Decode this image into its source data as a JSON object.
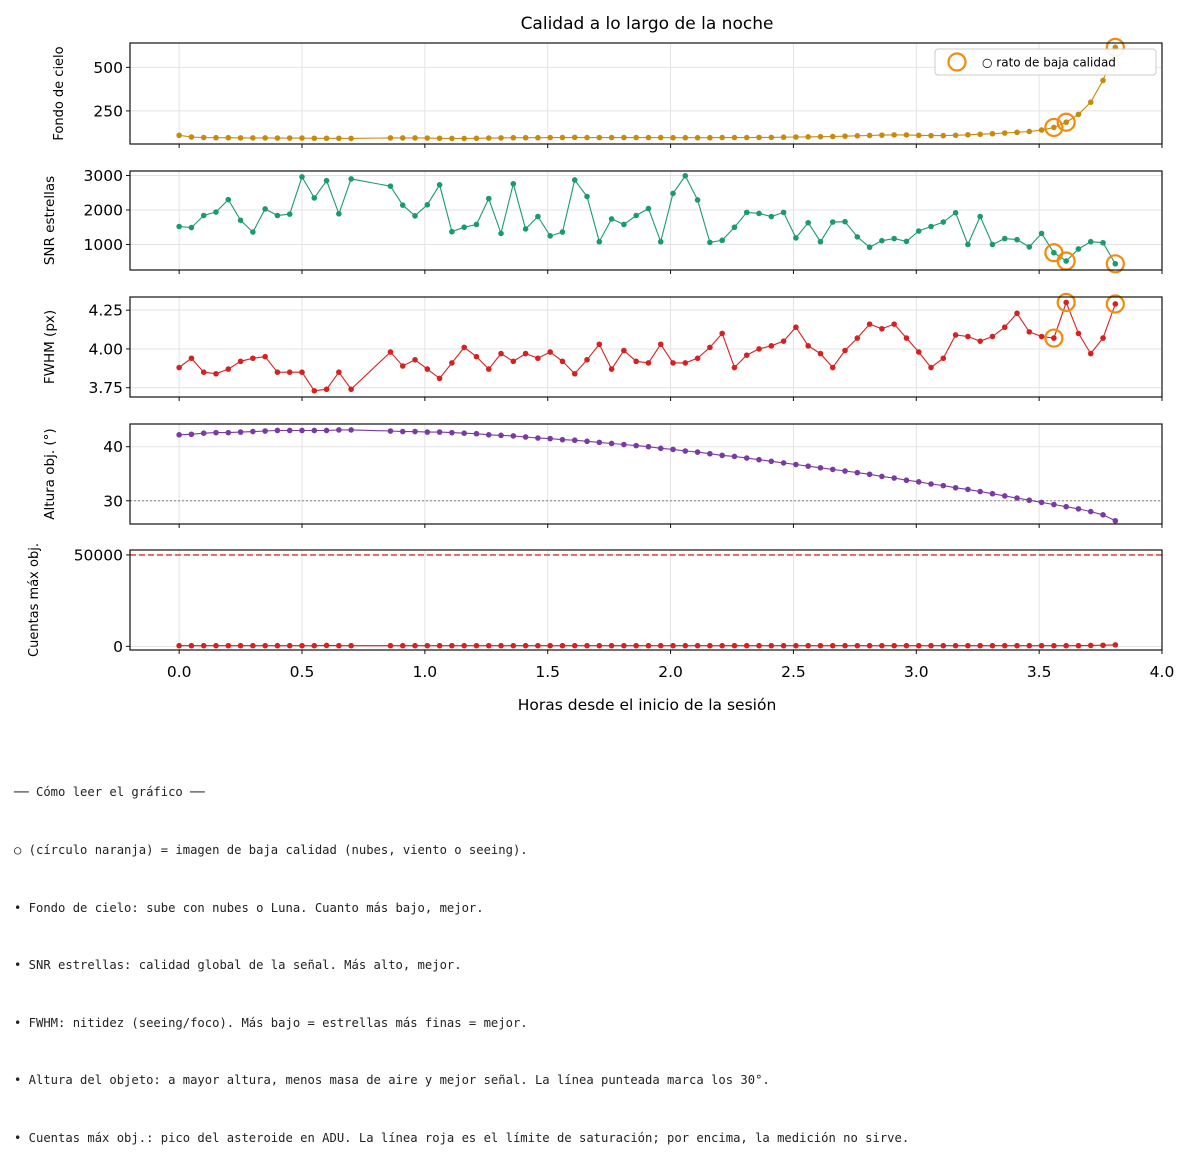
{
  "chart_data": {
    "type": "line",
    "title": "Calidad a lo largo de la noche",
    "xlabel": "Horas desde el inicio de la sesión",
    "xlim": [
      -0.2,
      4.0
    ],
    "xticks": [
      0.0,
      0.5,
      1.0,
      1.5,
      2.0,
      2.5,
      3.0,
      3.5,
      4.0
    ],
    "xticklabels": [
      "0.0",
      "0.5",
      "1.0",
      "1.5",
      "2.0",
      "2.5",
      "3.0",
      "3.5",
      "4.0"
    ],
    "grid": true,
    "legend": {
      "placement": "top-right",
      "panel": 0,
      "label": "○ rato de baja calidad",
      "marker": "orange open circle"
    },
    "x": [
      0.0,
      0.05,
      0.1,
      0.15,
      0.2,
      0.25,
      0.3,
      0.35,
      0.4,
      0.45,
      0.5,
      0.55,
      0.6,
      0.65,
      0.7,
      0.86,
      0.91,
      0.96,
      1.01,
      1.06,
      1.11,
      1.16,
      1.21,
      1.26,
      1.31,
      1.36,
      1.41,
      1.46,
      1.51,
      1.56,
      1.61,
      1.66,
      1.71,
      1.76,
      1.81,
      1.86,
      1.91,
      1.96,
      2.01,
      2.06,
      2.11,
      2.16,
      2.21,
      2.26,
      2.31,
      2.36,
      2.41,
      2.46,
      2.51,
      2.56,
      2.61,
      2.66,
      2.71,
      2.76,
      2.81,
      2.86,
      2.91,
      2.96,
      3.01,
      3.06,
      3.11,
      3.16,
      3.21,
      3.26,
      3.31,
      3.36,
      3.41,
      3.46,
      3.51,
      3.56,
      3.61,
      3.66,
      3.71,
      3.76,
      3.81
    ],
    "bad_x": [
      3.56,
      3.61,
      3.81
    ],
    "panels": [
      {
        "ylabel": "Fondo de cielo",
        "ylim": [
          60,
          640
        ],
        "yticks": [
          250,
          500
        ],
        "yticklabels": [
          "250",
          "500"
        ],
        "color": "#c98a0b",
        "values": [
          110,
          100,
          97,
          96,
          96,
          95,
          95,
          95,
          94,
          94,
          94,
          93,
          93,
          93,
          92,
          95,
          95,
          95,
          94,
          93,
          92,
          92,
          93,
          94,
          95,
          96,
          96,
          96,
          97,
          97,
          98,
          97,
          97,
          97,
          97,
          97,
          97,
          97,
          96,
          96,
          96,
          96,
          97,
          97,
          97,
          98,
          98,
          99,
          100,
          101,
          102,
          103,
          105,
          107,
          109,
          111,
          112,
          112,
          110,
          108,
          108,
          110,
          113,
          116,
          119,
          123,
          127,
          132,
          140,
          155,
          185,
          230,
          300,
          425,
          615
        ],
        "bad_values": [
          155,
          185,
          615
        ]
      },
      {
        "ylabel": "SNR estrellas",
        "ylim": [
          260,
          3130
        ],
        "yticks": [
          1000,
          2000,
          3000
        ],
        "yticklabels": [
          "1000",
          "2000",
          "3000"
        ],
        "color": "#1b9a6e",
        "values": [
          1520,
          1490,
          1840,
          1940,
          2300,
          1700,
          1360,
          2030,
          1840,
          1880,
          2960,
          2350,
          2850,
          1890,
          2900,
          2690,
          2140,
          1830,
          2150,
          2730,
          1370,
          1500,
          1580,
          2330,
          1320,
          2760,
          1450,
          1810,
          1250,
          1360,
          2870,
          2390,
          1080,
          1740,
          1580,
          1840,
          2040,
          1080,
          2480,
          2990,
          2290,
          1060,
          1120,
          1500,
          1930,
          1900,
          1810,
          1930,
          1190,
          1630,
          1080,
          1650,
          1660,
          1220,
          920,
          1110,
          1170,
          1090,
          1390,
          1520,
          1650,
          1920,
          1000,
          1810,
          1000,
          1170,
          1140,
          930,
          1320,
          760,
          520,
          870,
          1080,
          1050,
          440
        ],
        "bad_values": [
          760,
          520,
          440
        ]
      },
      {
        "ylabel": "FWHM (px)",
        "ylim": [
          3.69,
          4.335
        ],
        "yticks": [
          3.75,
          4.0,
          4.25
        ],
        "yticklabels": [
          "3.75",
          "4.00",
          "4.25"
        ],
        "color": "#d42222",
        "values": [
          3.88,
          3.94,
          3.85,
          3.84,
          3.87,
          3.92,
          3.94,
          3.95,
          3.85,
          3.85,
          3.85,
          3.73,
          3.74,
          3.85,
          3.74,
          3.98,
          3.89,
          3.93,
          3.87,
          3.81,
          3.91,
          4.01,
          3.95,
          3.87,
          3.97,
          3.92,
          3.97,
          3.94,
          3.98,
          3.92,
          3.84,
          3.93,
          4.03,
          3.87,
          3.99,
          3.92,
          3.91,
          4.03,
          3.91,
          3.91,
          3.94,
          4.01,
          4.1,
          3.88,
          3.96,
          4.0,
          4.02,
          4.05,
          4.14,
          4.02,
          3.97,
          3.88,
          3.99,
          4.07,
          4.16,
          4.13,
          4.16,
          4.07,
          3.98,
          3.88,
          3.94,
          4.09,
          4.08,
          4.05,
          4.08,
          4.14,
          4.23,
          4.11,
          4.08,
          4.07,
          4.3,
          4.1,
          3.97,
          4.07,
          4.29
        ],
        "bad_values": [
          4.07,
          4.3,
          4.29
        ]
      },
      {
        "ylabel": "Altura obj. (°)",
        "ylim": [
          25.7,
          44.2
        ],
        "yticks": [
          30,
          40
        ],
        "yticklabels": [
          "30",
          "40"
        ],
        "hline": {
          "y": 30,
          "style": "dotted",
          "color": "#999999"
        },
        "color": "#7a3aa3",
        "values": [
          42.2,
          42.3,
          42.5,
          42.6,
          42.6,
          42.7,
          42.8,
          42.9,
          43.0,
          43.0,
          43.0,
          43.0,
          43.0,
          43.1,
          43.1,
          42.9,
          42.8,
          42.8,
          42.7,
          42.7,
          42.6,
          42.5,
          42.4,
          42.2,
          42.1,
          42.0,
          41.8,
          41.6,
          41.5,
          41.3,
          41.2,
          41.0,
          40.8,
          40.6,
          40.4,
          40.2,
          40.0,
          39.7,
          39.5,
          39.2,
          39.0,
          38.7,
          38.4,
          38.2,
          37.9,
          37.6,
          37.3,
          37.0,
          36.7,
          36.4,
          36.1,
          35.8,
          35.5,
          35.2,
          34.9,
          34.5,
          34.2,
          33.8,
          33.5,
          33.1,
          32.8,
          32.4,
          32.1,
          31.7,
          31.3,
          30.9,
          30.5,
          30.1,
          29.7,
          29.3,
          28.9,
          28.5,
          28.0,
          27.4,
          26.3
        ],
        "bad_values": []
      },
      {
        "ylabel": "Cuentas máx obj.",
        "ylim": [
          -2000,
          52700
        ],
        "yticks": [
          0,
          50000
        ],
        "yticklabels": [
          "0",
          "50000"
        ],
        "hline": {
          "y": 50000,
          "style": "dashed",
          "color": "#d9534f"
        },
        "color": "#d42222",
        "values": [
          350,
          350,
          350,
          350,
          350,
          350,
          350,
          350,
          350,
          350,
          350,
          350,
          500,
          350,
          350,
          350,
          350,
          350,
          350,
          350,
          350,
          350,
          350,
          350,
          350,
          350,
          350,
          350,
          350,
          350,
          350,
          350,
          350,
          350,
          350,
          350,
          350,
          350,
          350,
          350,
          350,
          350,
          350,
          350,
          350,
          350,
          350,
          350,
          350,
          350,
          350,
          350,
          350,
          350,
          350,
          350,
          350,
          350,
          350,
          350,
          350,
          350,
          350,
          350,
          350,
          350,
          350,
          350,
          350,
          350,
          350,
          350,
          500,
          600,
          800
        ],
        "bad_values": []
      }
    ]
  },
  "notes": {
    "header": "── Cómo leer el gráfico ──",
    "lines": [
      "○ (círculo naranja) = imagen de baja calidad (nubes, viento o seeing).",
      "• Fondo de cielo: sube con nubes o Luna. Cuanto más bajo, mejor.",
      "• SNR estrellas: calidad global de la señal. Más alto, mejor.",
      "• FWHM: nitidez (seeing/foco). Más bajo = estrellas más finas = mejor.",
      "• Altura del objeto: a mayor altura, menos masa de aire y mejor señal. La línea punteada marca los 30°.",
      "• Cuentas máx obj.: pico del asteroide en ADU. La línea roja es el límite de saturación; por encima, la medición no sirve."
    ]
  }
}
